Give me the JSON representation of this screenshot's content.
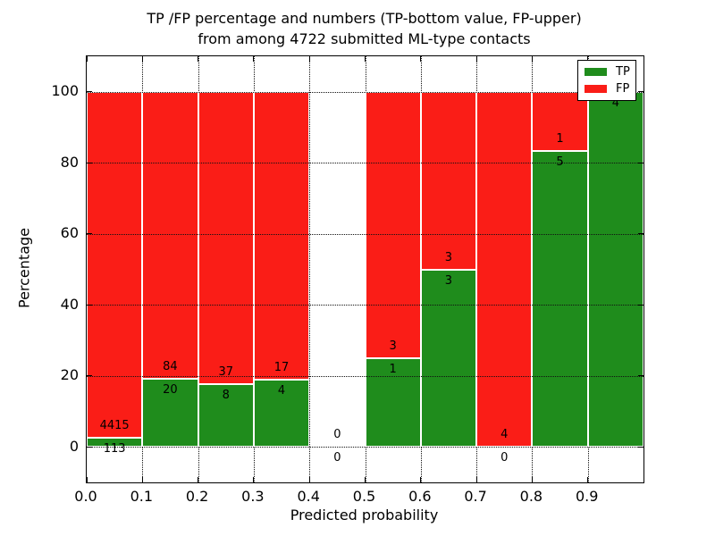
{
  "title": {
    "line1": "TP /FP percentage and numbers (TP-bottom value, FP-upper)",
    "line2": "from among 4722 submitted ML-type contacts"
  },
  "chart_data": {
    "type": "bar",
    "stacked": true,
    "normalized": "percent_within_bin",
    "title": "TP /FP percentage and numbers (TP-bottom value, FP-upper) from among 4722 submitted ML-type contacts",
    "xlabel": "Predicted probability",
    "ylabel": "Percentage",
    "xlim": [
      0.0,
      1.0
    ],
    "ylim": [
      -10,
      110
    ],
    "bin_width": 0.1,
    "x_tick_labels": [
      "0.0",
      "0.1",
      "0.2",
      "0.3",
      "0.4",
      "0.5",
      "0.6",
      "0.7",
      "0.8",
      "0.9"
    ],
    "y_tick_labels": [
      "0",
      "20",
      "40",
      "60",
      "80",
      "100"
    ],
    "grid": {
      "visible": true,
      "style": "dotted"
    },
    "colors": {
      "tp": "#1f8c1c",
      "fp": "#fa1d17"
    },
    "series": [
      {
        "name": "TP",
        "values": [
          113,
          20,
          8,
          4,
          0,
          1,
          3,
          0,
          5,
          4
        ]
      },
      {
        "name": "FP",
        "values": [
          4415,
          84,
          37,
          17,
          0,
          3,
          3,
          4,
          1,
          0
        ]
      }
    ],
    "bins": [
      {
        "range": "0.0-0.1",
        "tp": 113,
        "fp": 4415,
        "tp_label": "113",
        "fp_label": "4415"
      },
      {
        "range": "0.1-0.2",
        "tp": 20,
        "fp": 84,
        "tp_label": "20",
        "fp_label": "84"
      },
      {
        "range": "0.2-0.3",
        "tp": 8,
        "fp": 37,
        "tp_label": "8",
        "fp_label": "37"
      },
      {
        "range": "0.3-0.4",
        "tp": 4,
        "fp": 17,
        "tp_label": "4",
        "fp_label": "17"
      },
      {
        "range": "0.4-0.5",
        "tp": 0,
        "fp": 0,
        "tp_label": "0",
        "fp_label": "0"
      },
      {
        "range": "0.5-0.6",
        "tp": 1,
        "fp": 3,
        "tp_label": "1",
        "fp_label": "3"
      },
      {
        "range": "0.6-0.7",
        "tp": 3,
        "fp": 3,
        "tp_label": "3",
        "fp_label": "3"
      },
      {
        "range": "0.7-0.8",
        "tp": 0,
        "fp": 4,
        "tp_label": "0",
        "fp_label": "4"
      },
      {
        "range": "0.8-0.9",
        "tp": 5,
        "fp": 1,
        "tp_label": "5",
        "fp_label": "1"
      },
      {
        "range": "0.9-1.0",
        "tp": 4,
        "fp": 0,
        "tp_label": "4",
        "fp_label": null
      }
    ],
    "legend": {
      "position": "upper right",
      "entries": [
        {
          "label": "TP",
          "color": "#1f8c1c"
        },
        {
          "label": "FP",
          "color": "#fa1d17"
        }
      ]
    }
  }
}
